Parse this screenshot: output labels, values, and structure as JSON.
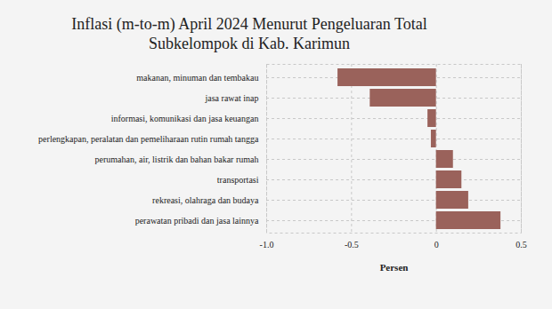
{
  "chart_data": {
    "type": "bar",
    "orientation": "horizontal",
    "title": "Inflasi (m-to-m) April 2024 Menurut Pengeluaran Total Subkelompok di Kab. Karimun",
    "x_label": "Persen",
    "categories": [
      "makanan, minuman dan tembakau",
      "jasa rawat inap",
      "informasi, komunikasi dan jasa keuangan",
      "perlengkapan, peralatan dan pemeliharaan rutin rumah tangga",
      "perumahan, air, listrik dan bahan bakar rumah",
      "transportasi",
      "rekreasi, olahraga dan budaya",
      "perawatan pribadi dan jasa lainnya"
    ],
    "values": [
      -0.58,
      -0.39,
      -0.05,
      -0.03,
      0.1,
      0.15,
      0.19,
      0.38
    ],
    "color": "#9a625b",
    "xlim": [
      -1,
      0.5
    ],
    "xticks": [
      {
        "value": -1,
        "label": "-1.0"
      },
      -0.5,
      0,
      0.5
    ],
    "grid": true
  }
}
